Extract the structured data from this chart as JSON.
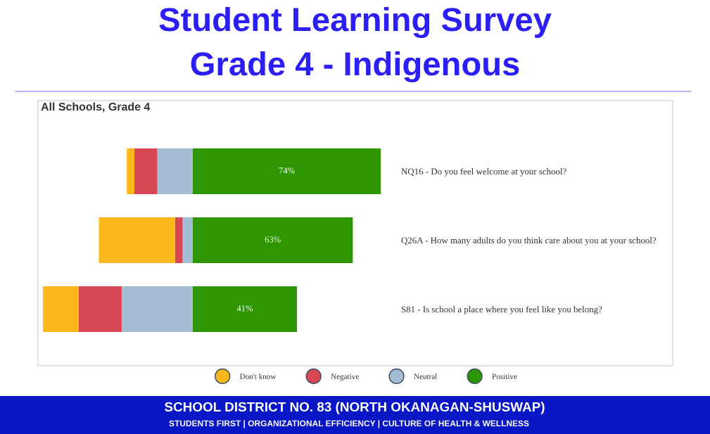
{
  "chart_data": {
    "type": "bar",
    "orientation": "horizontal",
    "stacked": true,
    "title": "Student Learning Survey",
    "subtitle": "Grade 4 - Indigenous",
    "annotations": [
      "All Schools, Grade 4",
      "SCHOOL DISTRICT NO. 83 (NORTH OKANAGAN-SHUSWAP)",
      "STUDENTS FIRST | ORGANIZATIONAL EFFICIENCY | CULTURE OF HEALTH & WELLNESS"
    ],
    "categories": [
      "NQ16 - Do you feel welcome at your school?",
      "Q26A - How many adults do you think care about you at your school?",
      "S81 - Is school a place where you feel like you belong?"
    ],
    "xlim": [
      -61,
      189
    ],
    "series": [
      {
        "name": "Neutral",
        "color": "#a4bdd5",
        "values": [
          -14,
          -4,
          -28
        ]
      },
      {
        "name": "Negative",
        "color": "#d74652",
        "values": [
          -9,
          -3,
          -17
        ]
      },
      {
        "name": "Don't know",
        "color": "#fbb81d",
        "values": [
          -3,
          -30,
          -14
        ]
      },
      {
        "name": "Positive",
        "color": "#2e9600",
        "values": [
          74,
          63,
          41
        ],
        "value_labels": [
          "74%",
          "63%",
          "41%"
        ]
      }
    ],
    "legend": "bottom"
  }
}
